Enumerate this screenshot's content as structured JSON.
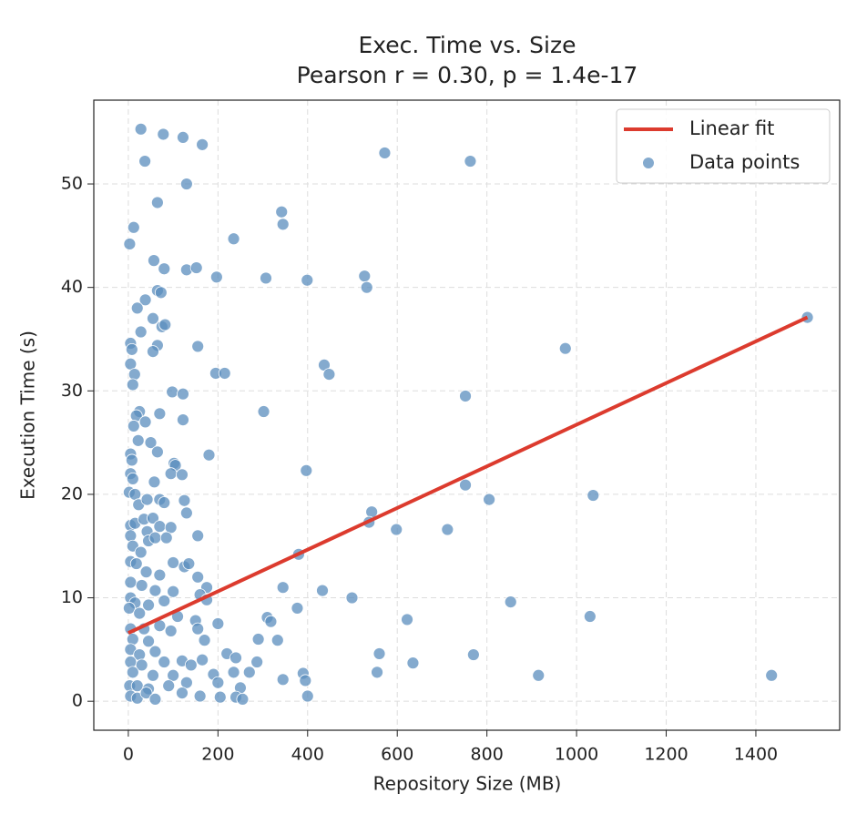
{
  "chart_data": {
    "type": "scatter",
    "title": "Exec. Time vs. Size",
    "subtitle": "Pearson r = 0.30, p = 1.4e-17",
    "x_label": "Repository Size (MB)",
    "y_label": "Execution Time (s)",
    "xlim": [
      -77,
      1587
    ],
    "ylim": [
      -2.8,
      58.1
    ],
    "xticks": [
      0,
      200,
      400,
      600,
      800,
      1000,
      1200,
      1400
    ],
    "yticks": [
      0,
      10,
      20,
      30,
      40,
      50
    ],
    "grid": true,
    "legend": "upper right",
    "series": [
      {
        "name": "Linear fit",
        "type": "line",
        "color": "#dc3b2e",
        "x": [
          0,
          1515
        ],
        "values": [
          6.6,
          37.1
        ]
      },
      {
        "name": "Data points",
        "type": "scatter",
        "color": "#5b8dbe",
        "x": [
          28,
          78,
          122,
          165,
          37,
          572,
          763,
          130,
          65,
          12,
          3,
          235,
          342,
          345,
          57,
          80,
          130,
          152,
          197,
          307,
          399,
          527,
          532,
          65,
          73,
          38,
          20,
          55,
          28,
          75,
          82,
          5,
          8,
          65,
          55,
          155,
          437,
          448,
          5,
          14,
          10,
          195,
          215,
          975,
          752,
          98,
          122,
          302,
          25,
          18,
          38,
          12,
          70,
          122,
          22,
          50,
          5,
          8,
          65,
          180,
          102,
          105,
          95,
          120,
          5,
          10,
          58,
          397,
          2,
          15,
          752,
          805,
          1037,
          23,
          42,
          70,
          80,
          125,
          130,
          543,
          537,
          5,
          15,
          35,
          55,
          70,
          95,
          598,
          712,
          42,
          5,
          155,
          45,
          60,
          85,
          10,
          28,
          380,
          5,
          18,
          100,
          125,
          135,
          40,
          70,
          155,
          5,
          30,
          60,
          100,
          175,
          345,
          433,
          499,
          853,
          5,
          15,
          45,
          80,
          160,
          175,
          2,
          25,
          110,
          377,
          622,
          1030,
          310,
          318,
          150,
          200,
          5,
          35,
          70,
          95,
          155,
          10,
          45,
          170,
          290,
          333,
          5,
          25,
          60,
          220,
          240,
          560,
          770,
          5,
          30,
          80,
          120,
          140,
          165,
          287,
          635,
          10,
          55,
          100,
          190,
          235,
          270,
          345,
          390,
          395,
          555,
          915,
          1435,
          3,
          20,
          45,
          90,
          130,
          200,
          250,
          5,
          20,
          40,
          60,
          120,
          160,
          205,
          240,
          255,
          400,
          1515
        ],
        "values": [
          55.3,
          54.8,
          54.5,
          53.8,
          52.2,
          53,
          52.2,
          50,
          48.2,
          45.8,
          44.2,
          44.7,
          47.3,
          46.1,
          42.6,
          41.8,
          41.7,
          41.9,
          41,
          40.9,
          40.7,
          41.1,
          40,
          39.7,
          39.5,
          38.8,
          38,
          37,
          35.7,
          36.2,
          36.4,
          34.6,
          34,
          34.4,
          33.8,
          34.3,
          32.5,
          31.6,
          32.6,
          31.6,
          30.6,
          31.7,
          31.7,
          34.1,
          29.5,
          29.9,
          29.7,
          28,
          28,
          27.6,
          27,
          26.6,
          27.8,
          27.2,
          25.2,
          25,
          23.9,
          23.3,
          24.1,
          23.8,
          23,
          22.8,
          22,
          21.9,
          22,
          21.5,
          21.2,
          22.3,
          20.2,
          20,
          20.9,
          19.5,
          19.9,
          19,
          19.5,
          19.5,
          19.2,
          19.4,
          18.2,
          18.3,
          17.3,
          17,
          17.2,
          17.6,
          17.7,
          16.9,
          16.8,
          16.6,
          16.6,
          16.4,
          16,
          16,
          15.5,
          15.8,
          15.8,
          15,
          14.4,
          14.2,
          13.5,
          13.3,
          13.4,
          13,
          13.3,
          12.5,
          12.2,
          12,
          11.5,
          11.2,
          10.7,
          10.6,
          11,
          11,
          10.7,
          10,
          9.6,
          10,
          9.5,
          9.3,
          9.7,
          10.3,
          9.8,
          9,
          8.5,
          8.2,
          9,
          7.9,
          8.2,
          8.1,
          7.7,
          7.8,
          7.5,
          7,
          7,
          7.3,
          6.8,
          7,
          6,
          5.8,
          5.9,
          6,
          5.9,
          5,
          4.5,
          4.8,
          4.6,
          4.2,
          4.6,
          4.5,
          3.8,
          3.5,
          3.8,
          3.9,
          3.5,
          4,
          3.8,
          3.7,
          2.8,
          2.5,
          2.5,
          2.6,
          2.8,
          2.8,
          2.1,
          2.7,
          2,
          2.8,
          2.5,
          2.5,
          1.5,
          1.5,
          1.2,
          1.5,
          1.8,
          1.8,
          1.3,
          0.5,
          0.3,
          0.8,
          0.2,
          0.8,
          0.5,
          0.4,
          0.4,
          0.2,
          0.5,
          37.1
        ]
      }
    ]
  }
}
